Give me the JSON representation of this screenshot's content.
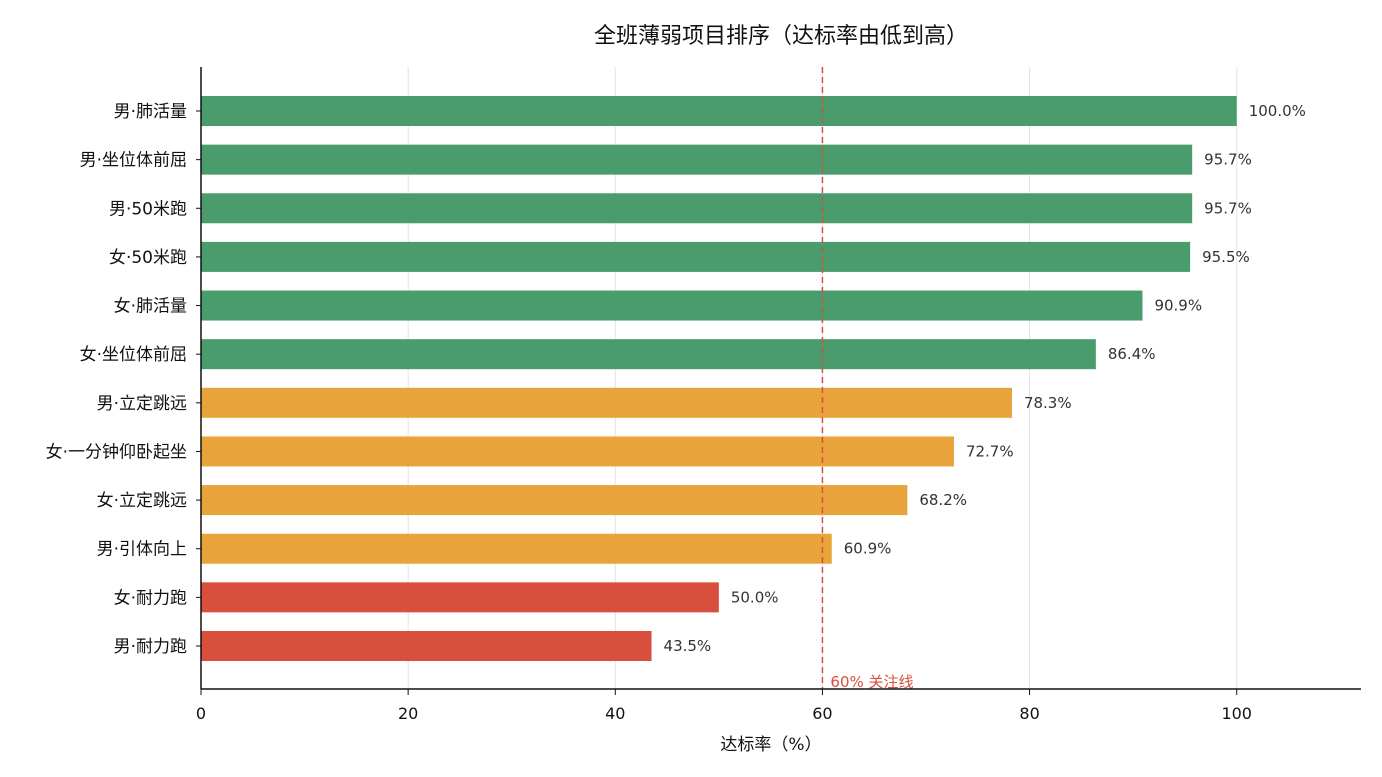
{
  "chart_data": {
    "type": "bar",
    "orientation": "horizontal",
    "title": "全班薄弱项目排序（达标率由低到高）",
    "xlabel": "达标率（%）",
    "ylabel": "",
    "xlim": [
      0,
      112
    ],
    "xticks": [
      0,
      20,
      40,
      60,
      80,
      100
    ],
    "grid": "vertical",
    "categories": [
      "男·肺活量",
      "男·坐位体前屈",
      "男·50米跑",
      "女·50米跑",
      "女·肺活量",
      "女·坐位体前屈",
      "男·立定跳远",
      "女·一分钟仰卧起坐",
      "女·立定跳远",
      "男·引体向上",
      "女·耐力跑",
      "男·耐力跑"
    ],
    "values": [
      100.0,
      95.7,
      95.7,
      95.5,
      90.9,
      86.4,
      78.3,
      72.7,
      68.2,
      60.9,
      50.0,
      43.5
    ],
    "value_labels": [
      "100.0%",
      "95.7%",
      "95.7%",
      "95.5%",
      "90.9%",
      "86.4%",
      "78.3%",
      "72.7%",
      "68.2%",
      "60.9%",
      "50.0%",
      "43.5%"
    ],
    "reference_line": {
      "x": 60,
      "label": "60% 关注线",
      "color": "#d94f3d",
      "style": "dashed"
    },
    "colors": {
      "high": "#4a9c6d",
      "medium": "#e8a33a",
      "low": "#d94f3d"
    },
    "color_thresholds": {
      "high_min": 85,
      "medium_min": 60
    }
  }
}
